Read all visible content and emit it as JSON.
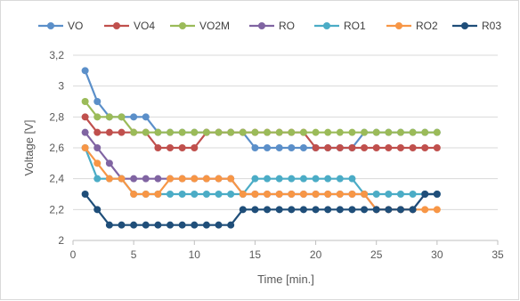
{
  "chart_data": {
    "type": "line",
    "title": "",
    "xlabel": "Time [min.]",
    "ylabel": "Voltage [V]",
    "xlim": [
      0,
      35
    ],
    "ylim": [
      2,
      3.2
    ],
    "x_ticks": [
      "0",
      "5",
      "10",
      "15",
      "20",
      "25",
      "30",
      "35"
    ],
    "y_ticks": [
      "2",
      "2,2",
      "2,4",
      "2,6",
      "2,8",
      "3",
      "3,2"
    ],
    "grid": "horizontal",
    "legend_position": "top",
    "x": [
      1,
      2,
      3,
      4,
      5,
      6,
      7,
      8,
      9,
      10,
      11,
      12,
      13,
      14,
      15,
      16,
      17,
      18,
      19,
      20,
      21,
      22,
      23,
      24,
      25,
      26,
      27,
      28,
      29,
      30
    ],
    "series": [
      {
        "name": "VO",
        "color": "#5B8FC9",
        "values": [
          3.1,
          2.9,
          2.8,
          2.8,
          2.8,
          2.8,
          2.7,
          2.7,
          2.7,
          2.7,
          2.7,
          2.7,
          2.7,
          2.7,
          2.6,
          2.6,
          2.6,
          2.6,
          2.6,
          2.6,
          2.6,
          2.6,
          2.6,
          2.7,
          2.7,
          2.7,
          2.7,
          2.7,
          2.7,
          2.7
        ]
      },
      {
        "name": "VO4",
        "color": "#C0504D",
        "values": [
          2.8,
          2.7,
          2.7,
          2.7,
          2.7,
          2.7,
          2.6,
          2.6,
          2.6,
          2.6,
          2.7,
          2.7,
          2.7,
          2.7,
          2.7,
          2.7,
          2.7,
          2.7,
          2.7,
          2.6,
          2.6,
          2.6,
          2.6,
          2.6,
          2.6,
          2.6,
          2.6,
          2.6,
          2.6,
          2.6
        ]
      },
      {
        "name": "VO2M",
        "color": "#9BBB59",
        "values": [
          2.9,
          2.8,
          2.8,
          2.8,
          2.7,
          2.7,
          2.7,
          2.7,
          2.7,
          2.7,
          2.7,
          2.7,
          2.7,
          2.7,
          2.7,
          2.7,
          2.7,
          2.7,
          2.7,
          2.7,
          2.7,
          2.7,
          2.7,
          2.7,
          2.7,
          2.7,
          2.7,
          2.7,
          2.7,
          2.7
        ]
      },
      {
        "name": "RO",
        "color": "#8064A2",
        "values": [
          2.7,
          2.6,
          2.5,
          2.4,
          2.4,
          2.4,
          2.4,
          2.4,
          2.4,
          2.4,
          2.4,
          2.4,
          2.4,
          2.3,
          2.3,
          2.3,
          2.3,
          2.3,
          2.3,
          2.3,
          2.3,
          2.3,
          2.3,
          2.3,
          2.2,
          2.2,
          2.2,
          2.2,
          2.3,
          2.3
        ]
      },
      {
        "name": "RO1",
        "color": "#4BACC6",
        "values": [
          2.6,
          2.4,
          2.4,
          2.4,
          2.3,
          2.3,
          2.3,
          2.3,
          2.3,
          2.3,
          2.3,
          2.3,
          2.3,
          2.3,
          2.4,
          2.4,
          2.4,
          2.4,
          2.4,
          2.4,
          2.4,
          2.4,
          2.4,
          2.3,
          2.3,
          2.3,
          2.3,
          2.3,
          2.3,
          2.3
        ]
      },
      {
        "name": "RO2",
        "color": "#F79646",
        "values": [
          2.6,
          2.5,
          2.4,
          2.4,
          2.3,
          2.3,
          2.3,
          2.4,
          2.4,
          2.4,
          2.4,
          2.4,
          2.4,
          2.3,
          2.3,
          2.3,
          2.3,
          2.3,
          2.3,
          2.3,
          2.3,
          2.3,
          2.3,
          2.3,
          2.2,
          2.2,
          2.2,
          2.2,
          2.2,
          2.2
        ]
      },
      {
        "name": "R03",
        "color": "#1F4E79",
        "values": [
          2.3,
          2.2,
          2.1,
          2.1,
          2.1,
          2.1,
          2.1,
          2.1,
          2.1,
          2.1,
          2.1,
          2.1,
          2.1,
          2.2,
          2.2,
          2.2,
          2.2,
          2.2,
          2.2,
          2.2,
          2.2,
          2.2,
          2.2,
          2.2,
          2.2,
          2.2,
          2.2,
          2.2,
          2.3,
          2.3
        ]
      }
    ]
  }
}
